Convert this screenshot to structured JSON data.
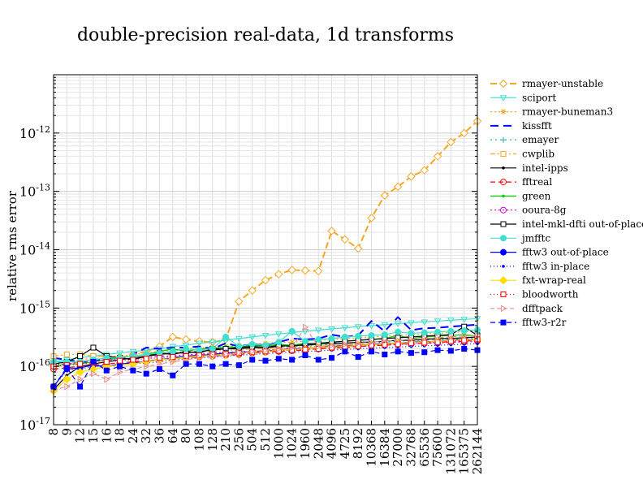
{
  "chart_data": {
    "type": "line",
    "title": "double-precision real-data, 1d transforms",
    "xlabel": "",
    "ylabel": "relative rms error",
    "yscale": "log",
    "ylim_exponents": [
      -17,
      -11
    ],
    "ytick_exponents": [
      -17,
      -16,
      -15,
      -14,
      -13,
      -12
    ],
    "grid": true,
    "legend_position": "right, outside plot",
    "categories": [
      "8",
      "9",
      "12",
      "15",
      "16",
      "18",
      "24",
      "32",
      "36",
      "64",
      "80",
      "108",
      "128",
      "210",
      "256",
      "504",
      "512",
      "1000",
      "1024",
      "1960",
      "2048",
      "4096",
      "4725",
      "8192",
      "10368",
      "16384",
      "27000",
      "32768",
      "65536",
      "75600",
      "131072",
      "165375",
      "262144"
    ],
    "series": [
      {
        "name": "rmayer-unstable",
        "color": "#f5a623",
        "dash": "8,4",
        "marker": "diamond-open",
        "values": [
          1e-16,
          1.1e-16,
          1.2e-16,
          1.3e-16,
          1.35e-16,
          1.4e-16,
          1.6e-16,
          1.8e-16,
          2.2e-16,
          3.2e-16,
          2.9e-16,
          2.7e-16,
          2.6e-16,
          2.9e-16,
          1.3e-15,
          2e-15,
          3e-15,
          3.8e-15,
          4.5e-15,
          4.4e-15,
          4.3e-15,
          2.1e-14,
          1.5e-14,
          1.05e-14,
          3.5e-14,
          8.5e-14,
          1.2e-13,
          1.8e-13,
          2.3e-13,
          4e-13,
          7e-13,
          1e-12,
          1.6e-12
        ]
      },
      {
        "name": "sciport",
        "color": "#40e0d0",
        "dash": "",
        "marker": "tri-down-open",
        "values": [
          1.2e-16,
          1.3e-16,
          1.4e-16,
          1.5e-16,
          1.6e-16,
          1.7e-16,
          1.8e-16,
          1.9e-16,
          2e-16,
          2.2e-16,
          2.3e-16,
          2.5e-16,
          2.6e-16,
          2.8e-16,
          3e-16,
          3.2e-16,
          3.4e-16,
          3.6e-16,
          3.8e-16,
          4e-16,
          4.2e-16,
          4.4e-16,
          4.6e-16,
          4.8e-16,
          5e-16,
          5.2e-16,
          5.4e-16,
          5.6e-16,
          5.8e-16,
          6e-16,
          6.2e-16,
          6.4e-16,
          6.6e-16
        ]
      },
      {
        "name": "rmayer-buneman3",
        "color": "#f5a623",
        "dash": "2,3",
        "marker": "star",
        "values": [
          1.1e-16,
          1.2e-16,
          1.3e-16,
          1.4e-16,
          1.5e-16,
          1.5e-16,
          1.6e-16,
          1.7e-16,
          1.8e-16,
          1.9e-16,
          2e-16,
          2.1e-16,
          2.1e-16,
          2.2e-16,
          2.3e-16,
          2.4e-16,
          2.5e-16,
          2.6e-16,
          2.6e-16,
          2.7e-16,
          2.8e-16,
          2.9e-16,
          3e-16,
          3.1e-16,
          3.2e-16,
          3.3e-16,
          3.4e-16,
          3.5e-16,
          3.6e-16,
          3.7e-16,
          3.8e-16,
          3.9e-16,
          4e-16
        ]
      },
      {
        "name": "kissfft",
        "color": "#0000ff",
        "dash": "10,6",
        "marker": "none",
        "values": [
          1.4e-16,
          1.3e-16,
          1.2e-16,
          1.2e-16,
          1.4e-16,
          1.3e-16,
          1.6e-16,
          2.1e-16,
          2e-16,
          2.1e-16,
          2.1e-16,
          2.2e-16,
          2e-16,
          2.5e-16,
          2.2e-16,
          2.4e-16,
          2.3e-16,
          2.6e-16,
          3e-16,
          2.9e-16,
          3e-16,
          3.5e-16,
          3.2e-16,
          3.4e-16,
          6e-16,
          4e-16,
          7e-16,
          4.2e-16,
          4.5e-16,
          4.6e-16,
          4.8e-16,
          5e-16,
          5.2e-16
        ]
      },
      {
        "name": "emayer",
        "color": "#20b2aa",
        "dash": "2,4",
        "marker": "plus",
        "values": [
          1.1e-16,
          1.2e-16,
          1.2e-16,
          1.3e-16,
          1.4e-16,
          1.4e-16,
          1.5e-16,
          1.6e-16,
          1.6e-16,
          1.7e-16,
          1.8e-16,
          1.8e-16,
          1.9e-16,
          2e-16,
          2e-16,
          2.1e-16,
          2.1e-16,
          2.2e-16,
          2.2e-16,
          2.3e-16,
          2.3e-16,
          2.4e-16,
          2.5e-16,
          2.5e-16,
          2.6e-16,
          2.6e-16,
          2.7e-16,
          2.8e-16,
          2.8e-16,
          2.9e-16,
          2.9e-16,
          3e-16,
          3.1e-16
        ]
      },
      {
        "name": "cwplib",
        "color": "#f5a623",
        "dash": "6,3,2,3",
        "marker": "square-open",
        "values": [
          1.5e-16,
          1.6e-16,
          1.6e-16,
          1.5e-16,
          1.5e-16,
          1.4e-16,
          1.5e-16,
          1.6e-16,
          1.6e-16,
          1.7e-16,
          1.7e-16,
          1.8e-16,
          1.8e-16,
          1.9e-16,
          1.9e-16,
          2e-16,
          2e-16,
          2.1e-16,
          2.1e-16,
          2.2e-16,
          2.2e-16,
          2.3e-16,
          2.3e-16,
          2.4e-16,
          2.4e-16,
          2.5e-16,
          2.5e-16,
          2.6e-16,
          2.6e-16,
          2.7e-16,
          2.7e-16,
          2.8e-16,
          2.8e-16
        ]
      },
      {
        "name": "intel-ipps",
        "color": "#000000",
        "dash": "",
        "marker": "dot",
        "values": [
          4e-17,
          7e-17,
          1e-16,
          1.1e-16,
          1.2e-16,
          1.3e-16,
          1.4e-16,
          1.5e-16,
          1.6e-16,
          1.7e-16,
          1.7e-16,
          1.8e-16,
          1.9e-16,
          2e-16,
          2e-16,
          2.1e-16,
          2.1e-16,
          2.2e-16,
          2.3e-16,
          2.3e-16,
          2.4e-16,
          2.5e-16,
          2.5e-16,
          2.6e-16,
          2.6e-16,
          2.7e-16,
          2.8e-16,
          2.8e-16,
          2.9e-16,
          3e-16,
          3e-16,
          3.1e-16,
          3.2e-16
        ]
      },
      {
        "name": "fftreal",
        "color": "#ff0000",
        "dash": "6,4",
        "marker": "circle-open",
        "values": [
          9e-17,
          9.5e-17,
          1e-16,
          1.05e-16,
          1.1e-16,
          1.15e-16,
          1.2e-16,
          1.25e-16,
          1.3e-16,
          1.35e-16,
          1.4e-16,
          1.45e-16,
          1.5e-16,
          1.55e-16,
          1.6e-16,
          1.7e-16,
          1.75e-16,
          1.8e-16,
          1.85e-16,
          1.9e-16,
          2e-16,
          2.05e-16,
          2.1e-16,
          2.2e-16,
          2.25e-16,
          2.3e-16,
          2.4e-16,
          2.45e-16,
          2.5e-16,
          2.6e-16,
          2.65e-16,
          2.7e-16,
          2.8e-16
        ]
      },
      {
        "name": "green",
        "color": "#00cc00",
        "dash": "",
        "marker": "dot",
        "values": [
          1e-16,
          1.1e-16,
          1.1e-16,
          1.2e-16,
          1.3e-16,
          1.4e-16,
          1.5e-16,
          1.6e-16,
          1.8e-16,
          2e-16,
          1.8e-16,
          2e-16,
          2e-16,
          2.2e-16,
          2.1e-16,
          2.3e-16,
          2.2e-16,
          2.4e-16,
          2.3e-16,
          2.5e-16,
          2.4e-16,
          2.6e-16,
          2.7e-16,
          2.8e-16,
          2.9e-16,
          3e-16,
          3.4e-16,
          3e-16,
          3.2e-16,
          3.3e-16,
          3.4e-16,
          3.5e-16,
          3.3e-16
        ]
      },
      {
        "name": "ooura-8g",
        "color": "#cc00cc",
        "dash": "2,3",
        "marker": "circle-open",
        "values": [
          1.1e-16,
          1.1e-16,
          1.2e-16,
          1.2e-16,
          1.3e-16,
          1.3e-16,
          1.4e-16,
          1.4e-16,
          1.5e-16,
          1.5e-16,
          1.6e-16,
          1.6e-16,
          1.7e-16,
          1.7e-16,
          1.8e-16,
          1.8e-16,
          1.9e-16,
          1.9e-16,
          2e-16,
          2e-16,
          2.1e-16,
          2.1e-16,
          2.2e-16,
          2.2e-16,
          2.3e-16,
          2.3e-16,
          2.4e-16,
          2.4e-16,
          2.5e-16,
          2.5e-16,
          2.6e-16,
          2.6e-16,
          2.7e-16
        ]
      },
      {
        "name": "intel-mkl-dfti out-of-place",
        "color": "#000000",
        "dash": "",
        "marker": "square-open",
        "values": [
          1.1e-16,
          1.2e-16,
          1.5e-16,
          2.1e-16,
          1.5e-16,
          1.4e-16,
          1.3e-16,
          1.5e-16,
          1.7e-16,
          1.6e-16,
          1.8e-16,
          1.7e-16,
          2e-16,
          2e-16,
          2.1e-16,
          2.2e-16,
          2.1e-16,
          2.3e-16,
          2.2e-16,
          2.4e-16,
          2.5e-16,
          2.6e-16,
          2.7e-16,
          2.8e-16,
          2.9e-16,
          3e-16,
          3.1e-16,
          3.2e-16,
          3.3e-16,
          3.4e-16,
          3.5e-16,
          4.8e-16,
          3.4e-16
        ]
      },
      {
        "name": "jmfftc",
        "color": "#40e0d0",
        "dash": "",
        "marker": "circle-filled",
        "values": [
          1.2e-16,
          1.2e-16,
          1.2e-16,
          1.3e-16,
          1.4e-16,
          1.4e-16,
          1.5e-16,
          1.6e-16,
          1.7e-16,
          1.8e-16,
          2e-16,
          1.9e-16,
          2e-16,
          3.2e-16,
          2.2e-16,
          2.4e-16,
          2.3e-16,
          2.6e-16,
          4e-16,
          2.7e-16,
          2.9e-16,
          3e-16,
          3.2e-16,
          3.3e-16,
          3.4e-16,
          3.5e-16,
          3.9e-16,
          3.7e-16,
          3.8e-16,
          3.9e-16,
          4e-16,
          4.1e-16,
          4.2e-16
        ]
      },
      {
        "name": "fftw3 out-of-place",
        "color": "#0000ff",
        "dash": "",
        "marker": "circle-filled",
        "values": [
          4.5e-17,
          9e-17,
          9.5e-17,
          1.05e-16,
          1e-16,
          1.1e-16,
          1.15e-16,
          1.2e-16,
          1.3e-16,
          1.4e-16,
          1.5e-16,
          1.55e-16,
          1.6e-16,
          1.7e-16,
          1.75e-16,
          1.8e-16,
          1.85e-16,
          1.9e-16,
          2e-16,
          2.05e-16,
          2.1e-16,
          2.2e-16,
          2.25e-16,
          2.3e-16,
          2.4e-16,
          2.45e-16,
          2.5e-16,
          2.6e-16,
          2.65e-16,
          2.7e-16,
          2.8e-16,
          2.85e-16,
          2.9e-16
        ]
      },
      {
        "name": "fftw3 in-place",
        "color": "#0000ff",
        "dash": "1,3",
        "marker": "dot",
        "values": [
          4.5e-17,
          8.5e-17,
          9e-17,
          1e-16,
          1e-16,
          1.05e-16,
          1.1e-16,
          1.15e-16,
          1.2e-16,
          1.3e-16,
          1.35e-16,
          1.4e-16,
          1.45e-16,
          1.5e-16,
          1.55e-16,
          1.6e-16,
          1.65e-16,
          1.7e-16,
          1.75e-16,
          1.8e-16,
          1.85e-16,
          1.9e-16,
          1.95e-16,
          2e-16,
          2.05e-16,
          2.1e-16,
          2.15e-16,
          2.2e-16,
          2.25e-16,
          2.3e-16,
          2.35e-16,
          2.4e-16,
          2.45e-16
        ]
      },
      {
        "name": "fxt-wrap-real",
        "color": "#ffdd00",
        "dash": "",
        "marker": "diamond-filled",
        "values": [
          3.8e-17,
          6e-17,
          8e-17,
          9e-17,
          1e-16,
          1.05e-16,
          1.1e-16,
          1.2e-16,
          1.3e-16,
          1.35e-16,
          1.4e-16,
          1.5e-16,
          1.55e-16,
          1.6e-16,
          1.7e-16,
          1.75e-16,
          1.8e-16,
          1.9e-16,
          1.95e-16,
          2e-16,
          2.1e-16,
          2.15e-16,
          2.2e-16,
          2.3e-16,
          2.35e-16,
          2.4e-16,
          2.5e-16,
          2.55e-16,
          2.6e-16,
          2.7e-16,
          2.75e-16,
          2.8e-16,
          2.9e-16
        ]
      },
      {
        "name": "bloodworth",
        "color": "#ff0000",
        "dash": "1,3",
        "marker": "square-open",
        "values": [
          1e-16,
          1.05e-16,
          1.1e-16,
          1.15e-16,
          1.2e-16,
          1.25e-16,
          1.3e-16,
          1.35e-16,
          1.4e-16,
          1.45e-16,
          1.5e-16,
          1.55e-16,
          1.6e-16,
          1.65e-16,
          1.7e-16,
          1.75e-16,
          1.8e-16,
          1.85e-16,
          1.9e-16,
          1.95e-16,
          2e-16,
          2.1e-16,
          2.15e-16,
          2.2e-16,
          2.3e-16,
          2.35e-16,
          2.4e-16,
          2.5e-16,
          2.55e-16,
          2.6e-16,
          2.7e-16,
          2.8e-16,
          2.9e-16
        ]
      },
      {
        "name": "dfftpack",
        "color": "#e89090",
        "dash": "5,3",
        "marker": "tri-right-open",
        "values": [
          4e-17,
          4.5e-17,
          6e-17,
          7.5e-17,
          6e-17,
          8e-17,
          9e-17,
          1e-16,
          1.1e-16,
          1.2e-16,
          1.3e-16,
          1.4e-16,
          1.5e-16,
          1.6e-16,
          1.7e-16,
          1.8e-16,
          1.9e-16,
          2e-16,
          2.1e-16,
          4.7e-16,
          2.2e-16,
          2.3e-16,
          2.4e-16,
          2.5e-16,
          2.6e-16,
          2.7e-16,
          2.8e-16,
          2.9e-16,
          3e-16,
          3.1e-16,
          3.2e-16,
          3.3e-16,
          3.4e-16
        ]
      },
      {
        "name": "fftw3-r2r",
        "color": "#0000ff",
        "dash": "6,4",
        "marker": "square-filled",
        "values": [
          4.5e-17,
          9.5e-17,
          4.5e-17,
          1.2e-16,
          8.5e-17,
          1e-16,
          8.5e-17,
          7.5e-17,
          9e-17,
          7e-17,
          1.1e-16,
          1.1e-16,
          1e-16,
          1.1e-16,
          1.05e-16,
          1.3e-16,
          1.25e-16,
          1.35e-16,
          1.3e-16,
          1.55e-16,
          1.3e-16,
          1.4e-16,
          1.8e-16,
          1.45e-16,
          1.8e-16,
          1.6e-16,
          1.8e-16,
          1.7e-16,
          1.75e-16,
          1.9e-16,
          1.85e-16,
          2e-16,
          1.9e-16
        ]
      }
    ]
  }
}
